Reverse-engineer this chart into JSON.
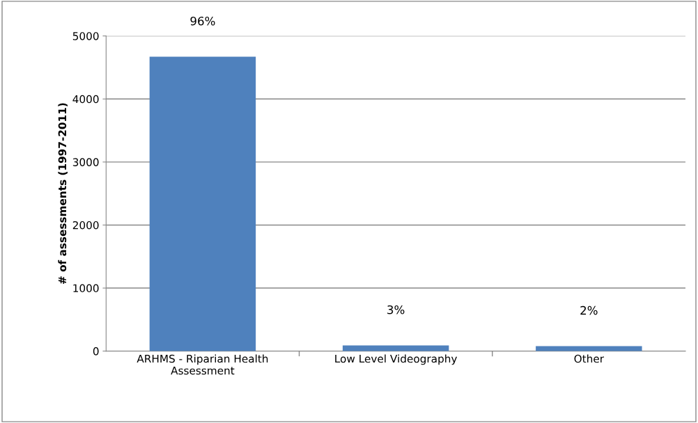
{
  "chart_data": {
    "type": "bar",
    "ylabel": "# of assessments (1997-2011)",
    "categories": [
      "ARHMS - Riparian Health\nAssessment",
      "Low Level Videography",
      "Other"
    ],
    "values": [
      4670,
      90,
      80
    ],
    "color": "#4f81bd",
    "annotations": [
      {
        "text": "96%",
        "x": "ARHMS - Riparian Health\nAssessment",
        "y": 4670
      },
      {
        "text": "3%",
        "x": "Low Level Videography",
        "y": 90
      },
      {
        "text": "2%",
        "x": "Other",
        "y": 80
      }
    ],
    "ylim": [
      0,
      5000
    ],
    "yticks": [
      0,
      1000,
      2000,
      3000,
      4000,
      5000
    ],
    "grid": "y",
    "legend": false
  }
}
